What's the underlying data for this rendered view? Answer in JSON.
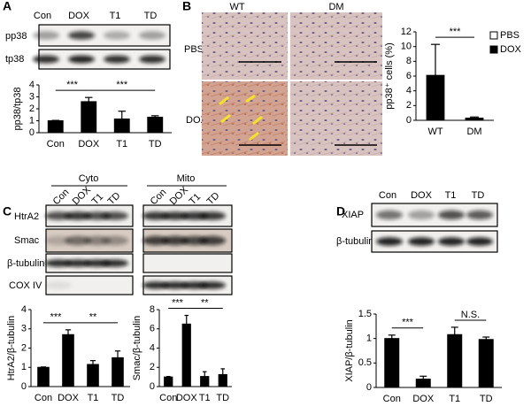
{
  "panel_labels": [
    "A",
    "B",
    "C",
    "D"
  ],
  "blots": {
    "A": {
      "lanes": [
        "Con",
        "DOX",
        "T1",
        "TD"
      ],
      "rows": [
        "pp38",
        "tp38"
      ]
    },
    "B": {
      "columns": [
        "WT",
        "DM"
      ],
      "rows": [
        "PBS",
        "DOX"
      ]
    },
    "C": {
      "groups": [
        "Cyto",
        "Mito"
      ],
      "lanes": [
        "Con",
        "DOX",
        "T1",
        "TD"
      ],
      "rows": [
        "HtrA2",
        "Smac",
        "β-tubulin",
        "COX IV"
      ]
    },
    "D": {
      "lanes": [
        "Con",
        "DOX",
        "T1",
        "TD"
      ],
      "rows": [
        "XIAP",
        "β-tubulin"
      ]
    }
  },
  "chart_data": [
    {
      "type": "bar",
      "y_label": "pp38/tp38",
      "categories": [
        "Con",
        "DOX",
        "T1",
        "TD"
      ],
      "values": [
        1,
        2.6,
        1.15,
        1.3
      ],
      "errors": [
        0.03,
        0.35,
        0.65,
        0.12
      ],
      "color": "#000000",
      "ylim": [
        0,
        4
      ],
      "yticks": [
        0,
        1,
        2,
        3,
        4
      ],
      "annotations": [
        {
          "text": "***",
          "between": [
            "Con",
            "DOX"
          ]
        },
        {
          "text": "***",
          "between": [
            "DOX",
            "TD"
          ]
        }
      ]
    },
    {
      "type": "bar",
      "y_label": "pp38⁺ cells (%)",
      "categories": [
        "WT",
        "DM"
      ],
      "series": [
        {
          "name": "PBS",
          "color": "#ffffff",
          "values": [
            null,
            null
          ]
        },
        {
          "name": "DOX",
          "color": "#000000",
          "values": [
            6.1,
            0.3
          ],
          "errors": [
            4.2,
            0.15
          ]
        }
      ],
      "ylim": [
        0,
        12
      ],
      "yticks": [
        0,
        2,
        4,
        6,
        8,
        10,
        12
      ],
      "legend": "upper right",
      "annotations": [
        {
          "text": "***",
          "between": [
            "WT",
            "DM"
          ]
        }
      ]
    },
    {
      "type": "bar",
      "y_label": "HtrA2/β-tubulin",
      "categories": [
        "Con",
        "DOX",
        "T1",
        "TD"
      ],
      "values": [
        1,
        2.7,
        1.15,
        1.5
      ],
      "errors": [
        0.02,
        0.25,
        0.2,
        0.35
      ],
      "color": "#000000",
      "ylim": [
        0,
        4
      ],
      "yticks": [
        0,
        1,
        2,
        3,
        4
      ],
      "annotations": [
        {
          "text": "***",
          "between": [
            "Con",
            "DOX"
          ]
        },
        {
          "text": "**",
          "between": [
            "DOX",
            "TD"
          ]
        }
      ]
    },
    {
      "type": "bar",
      "y_label": "Smac/β-tubulin",
      "categories": [
        "Con",
        "DOX",
        "T1",
        "TD"
      ],
      "values": [
        1,
        6.5,
        1.05,
        1.25
      ],
      "errors": [
        0.05,
        0.9,
        0.5,
        0.6
      ],
      "color": "#000000",
      "ylim": [
        0,
        8
      ],
      "yticks": [
        0,
        2,
        4,
        6,
        8
      ],
      "annotations": [
        {
          "text": "***",
          "between": [
            "Con",
            "DOX"
          ]
        },
        {
          "text": "**",
          "between": [
            "DOX",
            "TD"
          ]
        }
      ]
    },
    {
      "type": "bar",
      "y_label": "XIAP/β-tubulin",
      "categories": [
        "Con",
        "DOX",
        "T1",
        "TD"
      ],
      "values": [
        1,
        0.17,
        1.08,
        0.98
      ],
      "errors": [
        0.07,
        0.06,
        0.15,
        0.05
      ],
      "color": "#000000",
      "ylim": [
        0,
        1.5
      ],
      "yticks": [
        0,
        0.5,
        1,
        1.5
      ],
      "annotations": [
        {
          "text": "***",
          "between": [
            "Con",
            "DOX"
          ]
        },
        {
          "text": "N.S.",
          "between": [
            "T1",
            "TD"
          ]
        }
      ]
    }
  ]
}
